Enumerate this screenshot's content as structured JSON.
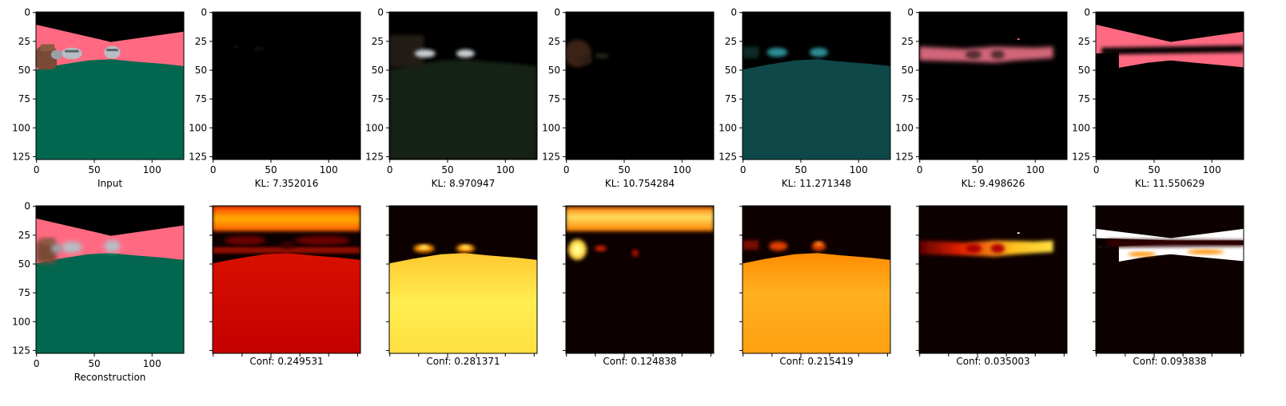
{
  "chart_data": {
    "type": "image-grid",
    "image_size": [
      128,
      128
    ],
    "tick_values": [
      0,
      25,
      50,
      75,
      100,
      125
    ],
    "x_tick_values": [
      0,
      50,
      100
    ],
    "rows": [
      {
        "panels": [
          {
            "label": "Input",
            "image": "segmentation",
            "visible_tick_labels": true
          },
          {
            "label": "KL: 7.352016",
            "image": "component-1",
            "visible_tick_labels": true
          },
          {
            "label": "KL: 8.970947",
            "image": "component-2",
            "visible_tick_labels": true
          },
          {
            "label": "KL: 10.754284",
            "image": "component-3",
            "visible_tick_labels": true
          },
          {
            "label": "KL: 11.271348",
            "image": "component-4",
            "visible_tick_labels": true
          },
          {
            "label": "KL: 9.498626",
            "image": "component-5",
            "visible_tick_labels": true
          },
          {
            "label": "KL: 11.550629",
            "image": "component-6",
            "visible_tick_labels": true
          }
        ]
      },
      {
        "panels": [
          {
            "label": "Reconstruction",
            "image": "segmentation-recon",
            "visible_tick_labels": true
          },
          {
            "label": "Conf: 0.249531",
            "image": "heat-red",
            "visible_tick_labels": false
          },
          {
            "label": "Conf: 0.281371",
            "image": "heat-yellow",
            "visible_tick_labels": false
          },
          {
            "label": "Conf: 0.124838",
            "image": "heat-top",
            "visible_tick_labels": false
          },
          {
            "label": "Conf: 0.215419",
            "image": "heat-orange",
            "visible_tick_labels": false
          },
          {
            "label": "Conf: 0.035003",
            "image": "heat-band",
            "visible_tick_labels": false
          },
          {
            "label": "Conf: 0.093838",
            "image": "heat-bowtie",
            "visible_tick_labels": false
          }
        ]
      }
    ],
    "colors": {
      "sky": "#000000",
      "sidewalk": "#ff6a82",
      "road": "#03664f",
      "car": "#b8bcc4",
      "building": "#7a4a36",
      "heat_low": "#0d0000",
      "heat_mid": "#cc0000",
      "heat_high": "#ffff60"
    }
  }
}
